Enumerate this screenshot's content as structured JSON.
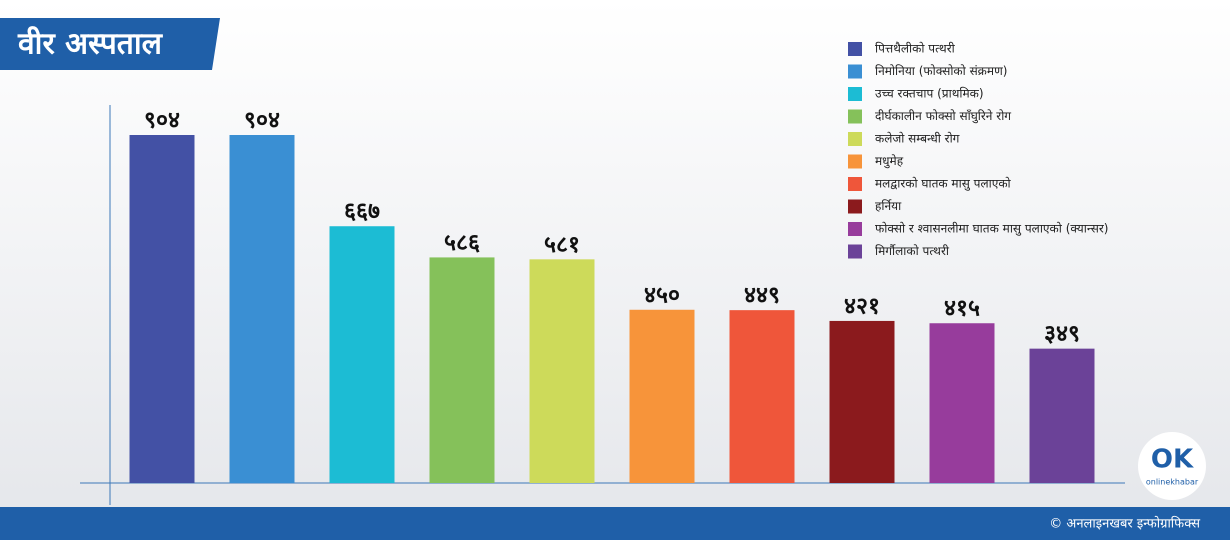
{
  "chart_data": {
    "type": "bar",
    "title": "वीर अस्पताल",
    "categories": [
      "पित्तथैलीको पत्थरी",
      "निमोनिया (फोक्सोको संक्रमण)",
      "उच्च रक्तचाप  (प्राथमिक)",
      "दीर्घकालीन फोक्सो साँघुरिने रोग",
      "कलेजो सम्बन्धी रोग",
      "मधुमेह",
      "मलद्वारको घातक मासु पलाएको",
      "हर्निया",
      "फोक्सो र श्वासनलीमा घातक मासु पलाएको (क्यान्सर)",
      "मिर्गौलाको पत्थरी"
    ],
    "values": [
      904,
      904,
      667,
      586,
      581,
      450,
      449,
      421,
      415,
      349
    ],
    "value_labels": [
      "९०४",
      "९०४",
      "६६७",
      "५८६",
      "५८१",
      "४५०",
      "४४९",
      "४२१",
      "४१५",
      "३४९"
    ],
    "colors": [
      "#4351a5",
      "#3a8fd3",
      "#1cbcd4",
      "#85c15a",
      "#cdda5a",
      "#f7943a",
      "#ef563a",
      "#8b1a1d",
      "#973c9c",
      "#6b4298"
    ]
  },
  "footer": "© अनलाइनखबर इन्फोग्राफिक्स",
  "logo": {
    "mark": "OK",
    "text": "onlinekhabar"
  }
}
